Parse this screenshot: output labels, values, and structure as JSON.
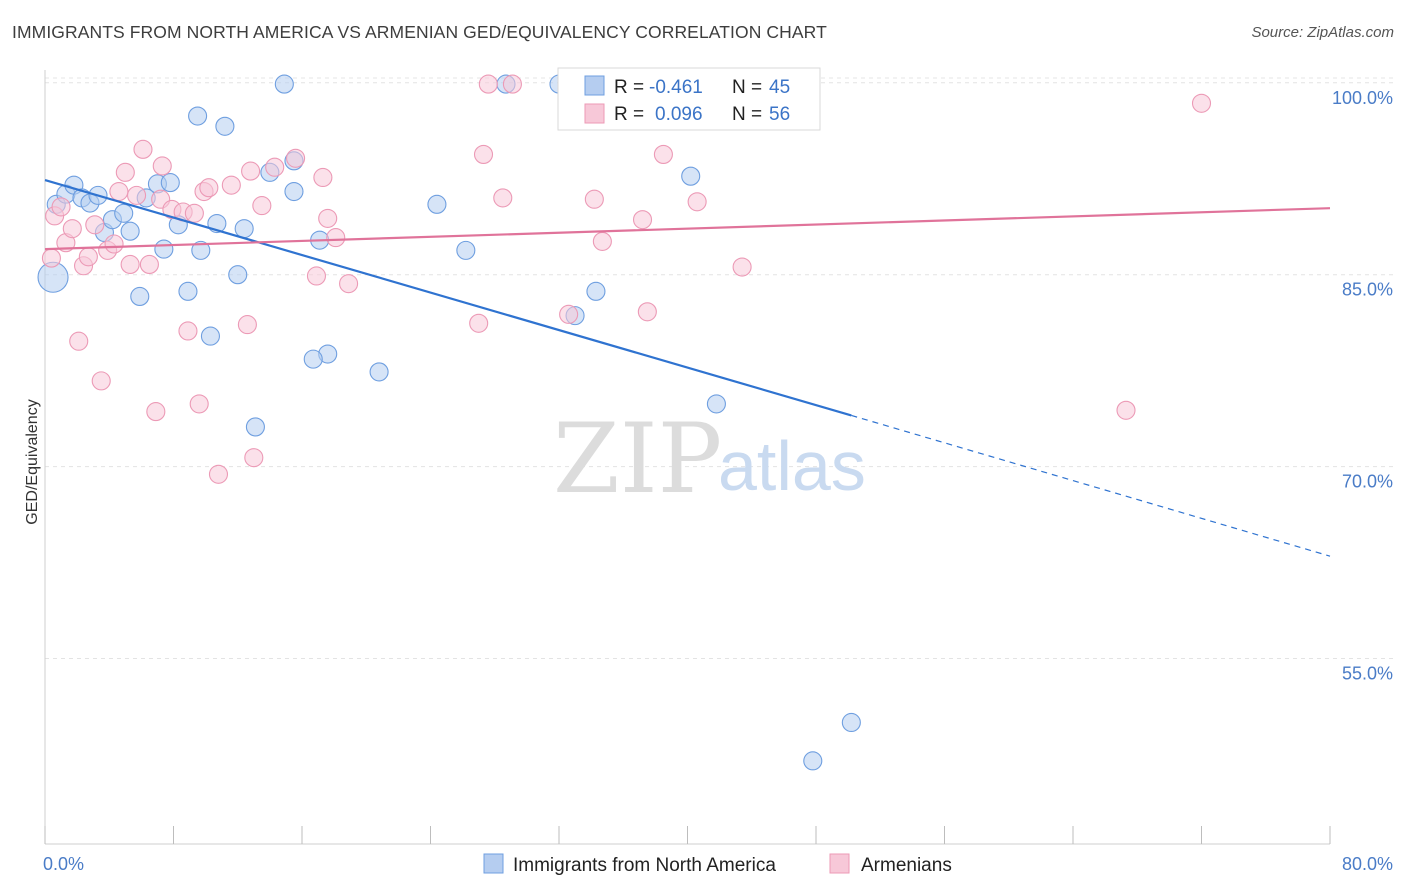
{
  "title": "IMMIGRANTS FROM NORTH AMERICA VS ARMENIAN GED/EQUIVALENCY CORRELATION CHART",
  "source": "Source: ZipAtlas.com",
  "watermark": {
    "zip": "ZIP",
    "atlas": "atlas"
  },
  "chart_data": {
    "type": "scatter",
    "ylabel": "GED/Equivalency",
    "xlim": [
      0,
      80
    ],
    "ylim": [
      40.5,
      101
    ],
    "x_ticks": [
      0,
      8,
      16,
      24,
      32,
      40,
      48,
      56,
      64,
      72,
      80
    ],
    "x_tick_labels": {
      "0": "0.0%",
      "80": "80.0%"
    },
    "y_ticks": [
      {
        "value": 100,
        "label": "100.0%"
      },
      {
        "value": 85,
        "label": "85.0%"
      },
      {
        "value": 70,
        "label": "70.0%"
      },
      {
        "value": 55,
        "label": "55.0%"
      }
    ],
    "grid": true,
    "legend": {
      "placement": "top-center",
      "rows": [
        {
          "r_label": "R = ",
          "r_value": "-0.461",
          "n_label": "N = ",
          "n_value": "45"
        },
        {
          "r_label": "R = ",
          "r_value": "0.096",
          "n_label": "N = ",
          "n_value": "56"
        }
      ]
    },
    "series": [
      {
        "name": "Immigrants from North America",
        "color": "#6f9fe0",
        "fill": "#b5cdf0",
        "line_color": "#2f73d0",
        "trend": {
          "x0": 0,
          "y0": 92.4,
          "x1": 50.2,
          "y1": 74.0,
          "x_dash_end": 80,
          "y_dash_end": 63.0
        },
        "points": [
          [
            0.5,
            84.8,
            15
          ],
          [
            0.7,
            90.5,
            9
          ],
          [
            1.3,
            91.3,
            9
          ],
          [
            1.8,
            92.0,
            9
          ],
          [
            2.3,
            91.0,
            9
          ],
          [
            2.8,
            90.6,
            9
          ],
          [
            3.3,
            91.2,
            9
          ],
          [
            3.7,
            88.3,
            9
          ],
          [
            4.2,
            89.3,
            9
          ],
          [
            4.9,
            89.8,
            9
          ],
          [
            5.3,
            88.4,
            9
          ],
          [
            5.9,
            83.3,
            9
          ],
          [
            6.3,
            91.0,
            9
          ],
          [
            7.0,
            92.1,
            9
          ],
          [
            7.4,
            87.0,
            9
          ],
          [
            7.8,
            92.2,
            9
          ],
          [
            8.3,
            88.9,
            9
          ],
          [
            8.9,
            83.7,
            9
          ],
          [
            9.5,
            97.4,
            9
          ],
          [
            9.7,
            86.9,
            9
          ],
          [
            10.3,
            80.2,
            9
          ],
          [
            10.7,
            89.0,
            9
          ],
          [
            11.2,
            96.6,
            9
          ],
          [
            12.0,
            85.0,
            9
          ],
          [
            12.4,
            88.6,
            9
          ],
          [
            13.1,
            73.1,
            9
          ],
          [
            14.0,
            93.0,
            9
          ],
          [
            14.9,
            99.9,
            9
          ],
          [
            15.5,
            93.9,
            9
          ],
          [
            15.5,
            91.5,
            9
          ],
          [
            17.1,
            87.7,
            9
          ],
          [
            17.6,
            78.8,
            9
          ],
          [
            16.7,
            78.4,
            9
          ],
          [
            20.8,
            77.4,
            9
          ],
          [
            24.4,
            90.5,
            9
          ],
          [
            26.2,
            86.9,
            9
          ],
          [
            28.7,
            99.9,
            9
          ],
          [
            32.0,
            99.9,
            9
          ],
          [
            33.5,
            99.9,
            9
          ],
          [
            33.0,
            81.8,
            9
          ],
          [
            34.3,
            83.7,
            9
          ],
          [
            40.2,
            92.7,
            9
          ],
          [
            41.8,
            74.9,
            9
          ],
          [
            50.2,
            50.0,
            9
          ],
          [
            47.8,
            47.0,
            9
          ]
        ]
      },
      {
        "name": "Armenians",
        "color": "#ec9ab6",
        "fill": "#f7c8d8",
        "line_color": "#e0739a",
        "trend": {
          "x0": 0,
          "y0": 87.0,
          "x1": 80,
          "y1": 90.2
        },
        "points": [
          [
            0.4,
            86.3,
            9
          ],
          [
            0.6,
            89.6,
            9
          ],
          [
            1.0,
            90.3,
            9
          ],
          [
            1.3,
            87.5,
            9
          ],
          [
            1.7,
            88.6,
            9
          ],
          [
            2.1,
            79.8,
            9
          ],
          [
            2.4,
            85.7,
            9
          ],
          [
            2.7,
            86.4,
            9
          ],
          [
            3.1,
            88.9,
            9
          ],
          [
            3.5,
            76.7,
            9
          ],
          [
            3.9,
            86.9,
            9
          ],
          [
            4.3,
            87.4,
            9
          ],
          [
            4.6,
            91.5,
            9
          ],
          [
            5.0,
            93.0,
            9
          ],
          [
            5.3,
            85.8,
            9
          ],
          [
            5.7,
            91.2,
            9
          ],
          [
            6.1,
            94.8,
            9
          ],
          [
            6.5,
            85.8,
            9
          ],
          [
            6.9,
            74.3,
            9
          ],
          [
            7.2,
            90.9,
            9
          ],
          [
            7.3,
            93.5,
            9
          ],
          [
            7.9,
            90.1,
            9
          ],
          [
            8.6,
            89.9,
            9
          ],
          [
            8.9,
            80.6,
            9
          ],
          [
            9.3,
            89.8,
            9
          ],
          [
            9.6,
            74.9,
            9
          ],
          [
            9.9,
            91.5,
            9
          ],
          [
            10.2,
            91.8,
            9
          ],
          [
            10.8,
            69.4,
            9
          ],
          [
            11.6,
            92.0,
            9
          ],
          [
            12.6,
            81.1,
            9
          ],
          [
            12.8,
            93.1,
            9
          ],
          [
            13.0,
            70.7,
            9
          ],
          [
            13.5,
            90.4,
            9
          ],
          [
            14.3,
            93.4,
            9
          ],
          [
            15.6,
            94.1,
            9
          ],
          [
            16.9,
            84.9,
            9
          ],
          [
            17.3,
            92.6,
            9
          ],
          [
            17.6,
            89.4,
            9
          ],
          [
            18.1,
            87.9,
            9
          ],
          [
            18.9,
            84.3,
            9
          ],
          [
            27.0,
            81.2,
            9
          ],
          [
            27.3,
            94.4,
            9
          ],
          [
            27.6,
            99.9,
            9
          ],
          [
            28.5,
            91.0,
            9
          ],
          [
            29.1,
            99.9,
            9
          ],
          [
            32.6,
            81.9,
            9
          ],
          [
            34.2,
            90.9,
            9
          ],
          [
            34.7,
            87.6,
            9
          ],
          [
            37.2,
            89.3,
            9
          ],
          [
            37.5,
            82.1,
            9
          ],
          [
            38.5,
            94.4,
            9
          ],
          [
            40.6,
            90.7,
            9
          ],
          [
            43.4,
            85.6,
            9
          ],
          [
            67.3,
            74.4,
            9
          ],
          [
            72.0,
            98.4,
            9
          ]
        ]
      }
    ]
  }
}
